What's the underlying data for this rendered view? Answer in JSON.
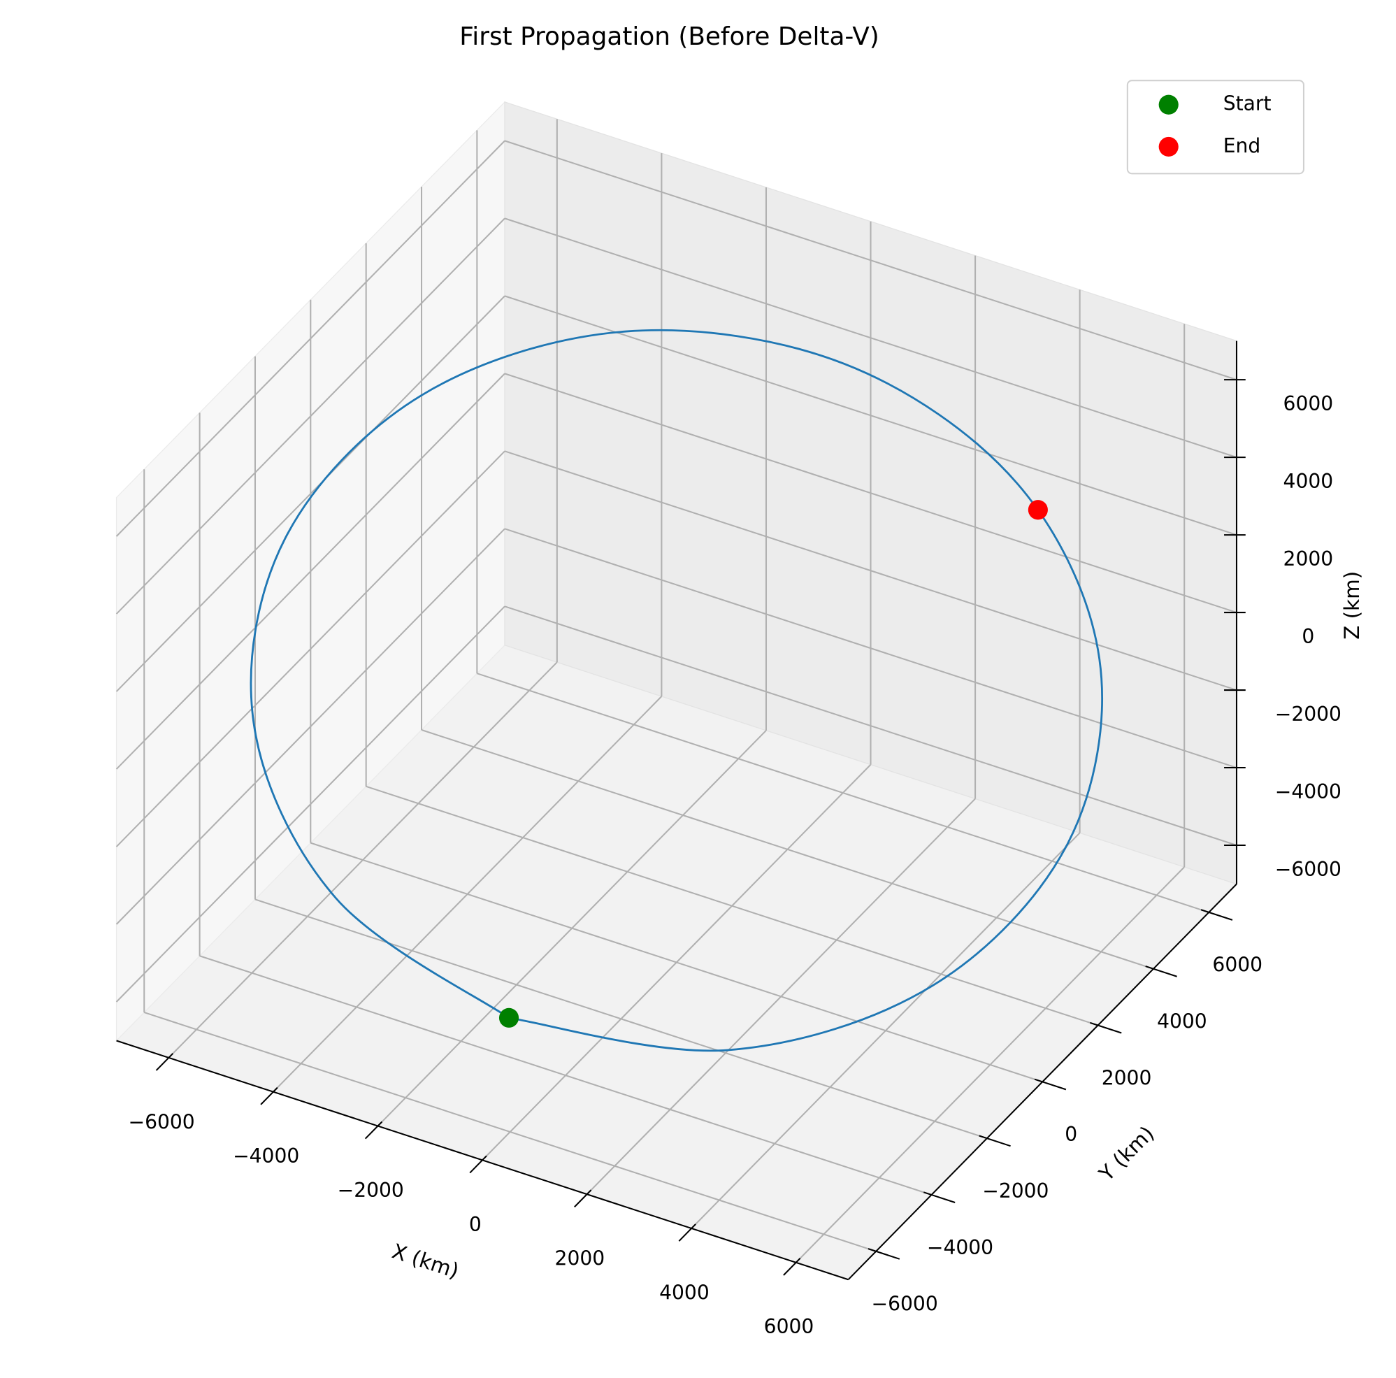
{
  "chart_data": {
    "type": "line3d",
    "title": "First Propagation (Before Delta-V)",
    "xlabel": "X (km)",
    "ylabel": "Y (km)",
    "zlabel": "Z (km)",
    "xlim": [
      -7000,
      7000
    ],
    "ylim": [
      -7000,
      7000
    ],
    "zlim": [
      -7000,
      7000
    ],
    "xticks": [
      {
        "value": -6000,
        "label": "−6000"
      },
      {
        "value": -4000,
        "label": "−4000"
      },
      {
        "value": -2000,
        "label": "−2000"
      },
      0,
      2000,
      4000,
      6000
    ],
    "yticks": [
      {
        "value": -6000,
        "label": "−6000"
      },
      {
        "value": -4000,
        "label": "−4000"
      },
      {
        "value": -2000,
        "label": "−2000"
      },
      0,
      2000,
      4000,
      6000
    ],
    "zticks": [
      {
        "value": -6000,
        "label": "−6000"
      },
      {
        "value": -4000,
        "label": "−4000"
      },
      {
        "value": -2000,
        "label": "−2000"
      },
      0,
      2000,
      4000,
      6000
    ],
    "grid": true,
    "legend": "upper right",
    "series": [
      {
        "type": "line",
        "color": "#1f77b4",
        "x": [
          -914,
          2421,
          5108,
          6425,
          6022,
          4003,
          914,
          -2421,
          -5108,
          -6425,
          -6022,
          -4003,
          -914
        ],
        "y": [
          -4320,
          -2738,
          -423,
          2005,
          3897,
          4743,
          4320,
          2738,
          423,
          -2005,
          -3897,
          -4743,
          -4320
        ],
        "z": [
          -5686,
          -6204,
          -5057,
          -2556,
          630,
          3647,
          5686,
          6204,
          5057,
          2556,
          -630,
          -3647,
          -5686
        ]
      },
      {
        "type": "scatter",
        "name": "Start",
        "color": "green",
        "x": [
          -914
        ],
        "y": [
          -4320
        ],
        "z": [
          -5686
        ]
      },
      {
        "type": "scatter",
        "name": "End",
        "color": "red",
        "x": [
          4428
        ],
        "y": [
          4687
        ],
        "z": [
          3199
        ]
      }
    ]
  }
}
